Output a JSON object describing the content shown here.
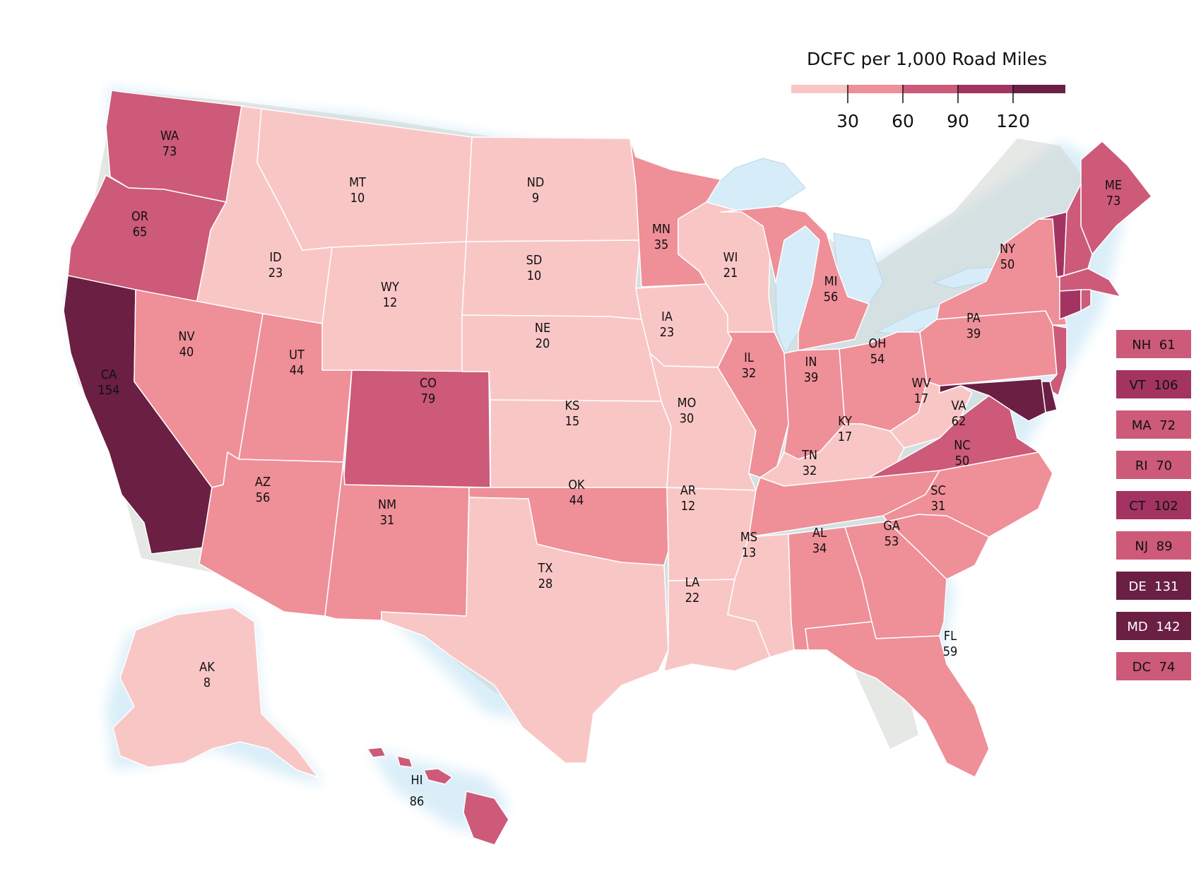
{
  "legend": {
    "title": "DCFC per 1,000 Road Miles",
    "ticks": [
      "30",
      "60",
      "90",
      "120"
    ],
    "bins": [
      {
        "max": 30,
        "color": "#f9c6c6"
      },
      {
        "max": 60,
        "color": "#ef8f98"
      },
      {
        "max": 90,
        "color": "#cc5a78"
      },
      {
        "max": 120,
        "color": "#a33462"
      },
      {
        "max": 999,
        "color": "#6a1f43"
      }
    ]
  },
  "chart_data": {
    "type": "choropleth",
    "title": "DCFC per 1,000 Road Miles",
    "states": [
      {
        "abbr": "WA",
        "value": 73
      },
      {
        "abbr": "OR",
        "value": 65
      },
      {
        "abbr": "CA",
        "value": 154
      },
      {
        "abbr": "ID",
        "value": 23
      },
      {
        "abbr": "NV",
        "value": 40
      },
      {
        "abbr": "MT",
        "value": 10
      },
      {
        "abbr": "WY",
        "value": 12
      },
      {
        "abbr": "UT",
        "value": 44
      },
      {
        "abbr": "AZ",
        "value": 56
      },
      {
        "abbr": "CO",
        "value": 79
      },
      {
        "abbr": "NM",
        "value": 31
      },
      {
        "abbr": "ND",
        "value": 9
      },
      {
        "abbr": "SD",
        "value": 10
      },
      {
        "abbr": "NE",
        "value": 20
      },
      {
        "abbr": "KS",
        "value": 15
      },
      {
        "abbr": "OK",
        "value": 44
      },
      {
        "abbr": "TX",
        "value": 28
      },
      {
        "abbr": "MN",
        "value": 35
      },
      {
        "abbr": "IA",
        "value": 23
      },
      {
        "abbr": "MO",
        "value": 30
      },
      {
        "abbr": "AR",
        "value": 12
      },
      {
        "abbr": "LA",
        "value": 22
      },
      {
        "abbr": "WI",
        "value": 21
      },
      {
        "abbr": "IL",
        "value": 32
      },
      {
        "abbr": "MI",
        "value": 56
      },
      {
        "abbr": "IN",
        "value": 39
      },
      {
        "abbr": "OH",
        "value": 54
      },
      {
        "abbr": "KY",
        "value": 17
      },
      {
        "abbr": "TN",
        "value": 32
      },
      {
        "abbr": "MS",
        "value": 13
      },
      {
        "abbr": "AL",
        "value": 34
      },
      {
        "abbr": "GA",
        "value": 53
      },
      {
        "abbr": "FL",
        "value": 59
      },
      {
        "abbr": "SC",
        "value": 31
      },
      {
        "abbr": "NC",
        "value": 50
      },
      {
        "abbr": "VA",
        "value": 62
      },
      {
        "abbr": "WV",
        "value": 17
      },
      {
        "abbr": "PA",
        "value": 39
      },
      {
        "abbr": "NY",
        "value": 50
      },
      {
        "abbr": "ME",
        "value": 73
      },
      {
        "abbr": "AK",
        "value": 8
      },
      {
        "abbr": "HI",
        "value": 86
      }
    ],
    "small_states": [
      {
        "abbr": "NH",
        "value": 61
      },
      {
        "abbr": "VT",
        "value": 106
      },
      {
        "abbr": "MA",
        "value": 72
      },
      {
        "abbr": "RI",
        "value": 70
      },
      {
        "abbr": "CT",
        "value": 102
      },
      {
        "abbr": "NJ",
        "value": 89
      },
      {
        "abbr": "DE",
        "value": 131
      },
      {
        "abbr": "MD",
        "value": 142
      },
      {
        "abbr": "DC",
        "value": 74
      }
    ]
  }
}
